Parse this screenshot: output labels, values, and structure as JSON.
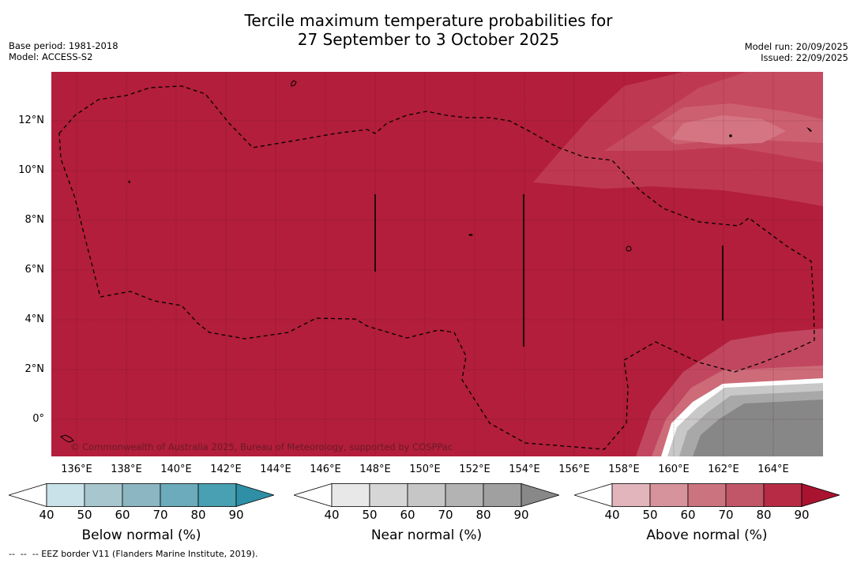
{
  "title_line1": "Tercile maximum temperature probabilities for",
  "title_line2": "27 September to 3 October 2025",
  "base_period": "Base period: 1981-2018",
  "model": "Model: ACCESS-S2",
  "model_run": "Model run: 20/09/2025",
  "issued": "Issued: 22/09/2025",
  "copyright": "© Commonwealth of Australia 2025, Bureau of Meteorology, supported by COSPPac",
  "lat_labels": [
    "12°N",
    "10°N",
    "8°N",
    "6°N",
    "4°N",
    "2°N",
    "0°"
  ],
  "lon_labels": [
    "136°E",
    "138°E",
    "140°E",
    "142°E",
    "144°E",
    "146°E",
    "148°E",
    "150°E",
    "152°E",
    "154°E",
    "156°E",
    "158°E",
    "160°E",
    "162°E",
    "164°E"
  ],
  "colorbars": {
    "below": {
      "label": "Below normal (%)",
      "ticks": [
        "40",
        "50",
        "60",
        "70",
        "80",
        "90"
      ],
      "colors": [
        "#ffffff",
        "#c9e1e8",
        "#a8c6cd",
        "#8bb6c2",
        "#6babbb",
        "#48a0b2",
        "#2f8fa6"
      ]
    },
    "near": {
      "label": "Near normal (%)",
      "ticks": [
        "40",
        "50",
        "60",
        "70",
        "80",
        "90"
      ],
      "colors": [
        "#ffffff",
        "#e8e8e8",
        "#d6d6d6",
        "#c6c6c6",
        "#b3b3b3",
        "#a0a0a0",
        "#888888"
      ]
    },
    "above": {
      "label": "Above normal (%)",
      "ticks": [
        "40",
        "50",
        "60",
        "70",
        "80",
        "90"
      ],
      "colors": [
        "#ffffff",
        "#e2b4bb",
        "#d7939b",
        "#cb7480",
        "#c25669",
        "#b72b44",
        "#a9132f"
      ]
    }
  },
  "footnote": "--  --  -- EEZ border V11 (Flanders Marine Institute, 2019)."
}
